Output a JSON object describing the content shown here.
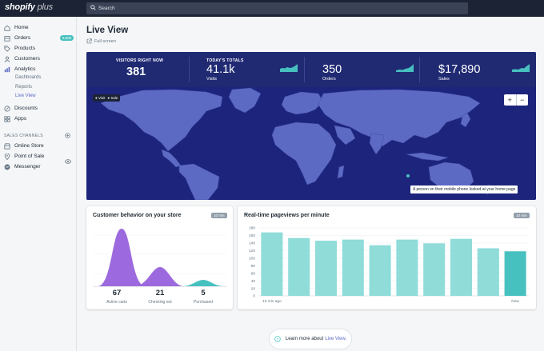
{
  "topbar": {
    "logo": "shopify",
    "logo_plus": "plus",
    "search_placeholder": "Search"
  },
  "sidebar": {
    "items": [
      {
        "label": "Home",
        "icon": "home-icon"
      },
      {
        "label": "Orders",
        "icon": "orders-icon",
        "badge": "6,980"
      },
      {
        "label": "Products",
        "icon": "tag-icon"
      },
      {
        "label": "Customers",
        "icon": "person-icon"
      },
      {
        "label": "Analytics",
        "icon": "analytics-icon"
      }
    ],
    "sub_items": [
      {
        "label": "Dashboards"
      },
      {
        "label": "Reports"
      },
      {
        "label": "Live View",
        "active": true
      }
    ],
    "items2": [
      {
        "label": "Discounts",
        "icon": "discount-icon"
      },
      {
        "label": "Apps",
        "icon": "apps-icon"
      }
    ],
    "channels_header": "SALES CHANNELS",
    "channels": [
      {
        "label": "Online Store",
        "icon": "store-icon"
      },
      {
        "label": "Point of Sale",
        "icon": "location-icon"
      },
      {
        "label": "Messenger",
        "icon": "messenger-icon"
      }
    ]
  },
  "page": {
    "title": "Live View",
    "fullscreen": "Full screen"
  },
  "stats": {
    "visitors_caption": "VISITORS RIGHT NOW",
    "visitors_value": "381",
    "totals_caption": "TODAY'S TOTALS",
    "visits_value": "41.1k",
    "visits_label": "Visits",
    "orders_value": "350",
    "orders_label": "Orders",
    "sales_value": "$17,890",
    "sales_label": "Sales"
  },
  "map": {
    "legend_visit": "Visit",
    "legend_sale": "Sale",
    "zoom_in": "+",
    "zoom_out": "−",
    "tooltip": "A person on their mobile phone looked at your home page"
  },
  "behavior": {
    "title": "Customer behavior on your store",
    "period": "10 min",
    "metrics": [
      {
        "value": "67",
        "label": "Active carts"
      },
      {
        "value": "21",
        "label": "Checking out"
      },
      {
        "value": "5",
        "label": "Purchased"
      }
    ]
  },
  "pageviews": {
    "title": "Real-time pageviews per minute",
    "period": "10 min",
    "x_start": "10 min ago",
    "x_end": "Now"
  },
  "chart_data": {
    "type": "bar",
    "title": "Real-time pageviews per minute",
    "categories": [
      "10 min ago",
      "",
      "",
      "",
      "",
      "",
      "",
      "",
      "",
      "Now"
    ],
    "values": [
      168,
      153,
      146,
      149,
      134,
      149,
      139,
      151,
      126,
      118
    ],
    "yticks": [
      0,
      20,
      40,
      60,
      80,
      100,
      120,
      140,
      160,
      180
    ],
    "ylim": [
      0,
      180
    ],
    "grid": true,
    "bar_color": "#8fdcd9",
    "highlight_color": "#47c1bf"
  },
  "help": {
    "text": "Learn more about",
    "link": "Live View."
  },
  "colors": {
    "accent": "#5c6ac4",
    "teal": "#47c1bf",
    "navy": "#1d247b",
    "purple": "#9c6ade"
  }
}
